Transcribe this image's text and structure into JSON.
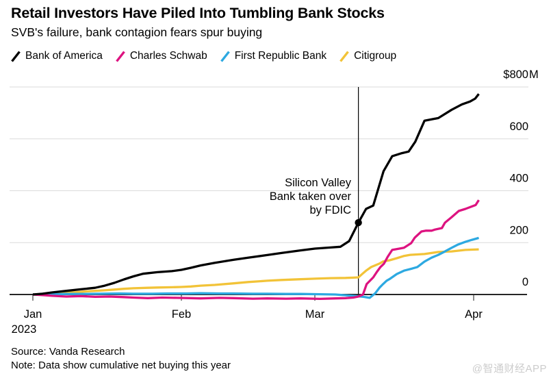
{
  "header": {
    "title": "Retail Investors Have Piled Into Tumbling Bank Stocks",
    "subtitle": "SVB's failure, bank contagion fears spur buying"
  },
  "legend": {
    "items": [
      {
        "label": "Bank of America",
        "color": "#000000"
      },
      {
        "label": "Charles Schwab",
        "color": "#dd1380"
      },
      {
        "label": "First Republic Bank",
        "color": "#2da9e1"
      },
      {
        "label": "Citigroup",
        "color": "#f2c338"
      }
    ]
  },
  "chart_data": {
    "type": "line",
    "unit": "USD millions, cumulative net buying since Jan 1 2023",
    "x_axis": {
      "start_date": "2023-01-01",
      "ticks": [
        {
          "label": "Jan",
          "sublabel": "2023",
          "day": 0
        },
        {
          "label": "Feb",
          "day": 31
        },
        {
          "label": "Mar",
          "day": 59
        },
        {
          "label": "Apr",
          "day": 90
        }
      ]
    },
    "y_axis": {
      "range": [
        0,
        800
      ],
      "ticks": [
        {
          "label": "$800",
          "suffix": "M",
          "value": 800
        },
        {
          "label": "600",
          "value": 600
        },
        {
          "label": "400",
          "value": 400
        },
        {
          "label": "200",
          "value": 200
        },
        {
          "label": "0",
          "value": 0
        }
      ]
    },
    "annotation": {
      "lines": [
        "Silicon Valley",
        "Bank taken over",
        "by FDIC"
      ],
      "day": 67.5,
      "marker": {
        "series": "Bank of America",
        "day": 67.5,
        "value": 277
      }
    },
    "series": [
      {
        "name": "Bank of America",
        "color": "#000000",
        "points": [
          [
            0,
            0
          ],
          [
            2,
            3
          ],
          [
            4,
            8
          ],
          [
            7,
            14
          ],
          [
            10,
            20
          ],
          [
            13,
            26
          ],
          [
            15,
            34
          ],
          [
            17,
            45
          ],
          [
            19,
            58
          ],
          [
            21,
            70
          ],
          [
            23,
            80
          ],
          [
            26,
            86
          ],
          [
            29,
            90
          ],
          [
            31,
            95
          ],
          [
            33,
            103
          ],
          [
            35,
            112
          ],
          [
            38,
            122
          ],
          [
            42,
            134
          ],
          [
            45,
            142
          ],
          [
            49,
            152
          ],
          [
            52,
            160
          ],
          [
            56,
            170
          ],
          [
            59,
            177
          ],
          [
            62,
            181
          ],
          [
            64,
            184
          ],
          [
            65.7,
            206
          ],
          [
            67.5,
            277
          ],
          [
            69,
            330
          ],
          [
            70.4,
            343
          ],
          [
            72.4,
            475
          ],
          [
            74.1,
            533
          ],
          [
            76,
            545
          ],
          [
            77.3,
            551
          ],
          [
            78.6,
            589
          ],
          [
            80.4,
            670
          ],
          [
            83.1,
            680
          ],
          [
            85.7,
            712
          ],
          [
            87.7,
            733
          ],
          [
            89.3,
            744
          ],
          [
            90.3,
            755
          ],
          [
            91,
            773
          ]
        ]
      },
      {
        "name": "Charles Schwab",
        "color": "#dd1380",
        "points": [
          [
            0,
            0
          ],
          [
            2,
            -2
          ],
          [
            4,
            -5
          ],
          [
            7,
            -8
          ],
          [
            10,
            -6
          ],
          [
            13,
            -9
          ],
          [
            16,
            -8
          ],
          [
            19,
            -10
          ],
          [
            21,
            -12
          ],
          [
            24,
            -14
          ],
          [
            27,
            -12
          ],
          [
            30,
            -13
          ],
          [
            33,
            -14
          ],
          [
            35,
            -15
          ],
          [
            39,
            -13
          ],
          [
            42,
            -14
          ],
          [
            46,
            -16
          ],
          [
            49,
            -15
          ],
          [
            53,
            -16
          ],
          [
            56,
            -15
          ],
          [
            60,
            -17
          ],
          [
            63,
            -15
          ],
          [
            65,
            -14
          ],
          [
            66.5,
            -12
          ],
          [
            67.5,
            -8
          ],
          [
            68.4,
            0
          ],
          [
            69.1,
            40
          ],
          [
            70.4,
            66
          ],
          [
            71.1,
            87
          ],
          [
            71.8,
            106
          ],
          [
            72.5,
            119
          ],
          [
            73.2,
            145
          ],
          [
            74.1,
            172
          ],
          [
            75.5,
            177
          ],
          [
            76.4,
            180
          ],
          [
            77.8,
            198
          ],
          [
            78.5,
            219
          ],
          [
            79.8,
            243
          ],
          [
            80.7,
            246
          ],
          [
            81.8,
            246
          ],
          [
            82.4,
            250
          ],
          [
            83.8,
            256
          ],
          [
            84.4,
            277
          ],
          [
            85.7,
            298
          ],
          [
            87.1,
            322
          ],
          [
            88.4,
            330
          ],
          [
            90.4,
            345
          ],
          [
            91,
            364
          ]
        ]
      },
      {
        "name": "First Republic Bank",
        "color": "#2da9e1",
        "points": [
          [
            0,
            0
          ],
          [
            4,
            1
          ],
          [
            7,
            2
          ],
          [
            10,
            2
          ],
          [
            14,
            3
          ],
          [
            18,
            4
          ],
          [
            21,
            3
          ],
          [
            25,
            3
          ],
          [
            28,
            4
          ],
          [
            32,
            4
          ],
          [
            35,
            5
          ],
          [
            39,
            4
          ],
          [
            42,
            4
          ],
          [
            46,
            3
          ],
          [
            49,
            3
          ],
          [
            53,
            2
          ],
          [
            56,
            2
          ],
          [
            60,
            1
          ],
          [
            63,
            0
          ],
          [
            65,
            -3
          ],
          [
            67,
            -6
          ],
          [
            68.5,
            -9
          ],
          [
            69.7,
            -13
          ],
          [
            70.8,
            5
          ],
          [
            71.6,
            26
          ],
          [
            72.3,
            40
          ],
          [
            73,
            53
          ],
          [
            73.7,
            61
          ],
          [
            75,
            79
          ],
          [
            76.4,
            92
          ],
          [
            78,
            100
          ],
          [
            79,
            106
          ],
          [
            80.4,
            127
          ],
          [
            81.8,
            142
          ],
          [
            83.1,
            153
          ],
          [
            84.4,
            166
          ],
          [
            85.7,
            180
          ],
          [
            87,
            193
          ],
          [
            88.4,
            203
          ],
          [
            89.7,
            211
          ],
          [
            91,
            218
          ]
        ]
      },
      {
        "name": "Citigroup",
        "color": "#f2c338",
        "points": [
          [
            0,
            0
          ],
          [
            2,
            1
          ],
          [
            4,
            3
          ],
          [
            7,
            7
          ],
          [
            9,
            9
          ],
          [
            11,
            12
          ],
          [
            13,
            14
          ],
          [
            15,
            16
          ],
          [
            17,
            19
          ],
          [
            19,
            22
          ],
          [
            21,
            24
          ],
          [
            24,
            26
          ],
          [
            26,
            27
          ],
          [
            29,
            28
          ],
          [
            31,
            29
          ],
          [
            33,
            31
          ],
          [
            35,
            34
          ],
          [
            38,
            37
          ],
          [
            42,
            43
          ],
          [
            45,
            48
          ],
          [
            49,
            53
          ],
          [
            52,
            56
          ],
          [
            56,
            59
          ],
          [
            59,
            61
          ],
          [
            62,
            63
          ],
          [
            65,
            64
          ],
          [
            66.5,
            65
          ],
          [
            67.5,
            66
          ],
          [
            68.3,
            80
          ],
          [
            69,
            92
          ],
          [
            70,
            106
          ],
          [
            71.6,
            119
          ],
          [
            72.3,
            127
          ],
          [
            73.6,
            132
          ],
          [
            75,
            140
          ],
          [
            76.3,
            148
          ],
          [
            77.6,
            153
          ],
          [
            80.4,
            156
          ],
          [
            83.1,
            164
          ],
          [
            85.7,
            166
          ],
          [
            88.4,
            172
          ],
          [
            91,
            174
          ]
        ]
      }
    ]
  },
  "footer": {
    "source": "Source: Vanda Research",
    "note": "Note: Data show cumulative net buying this year",
    "watermark": "@智通财经APP"
  }
}
